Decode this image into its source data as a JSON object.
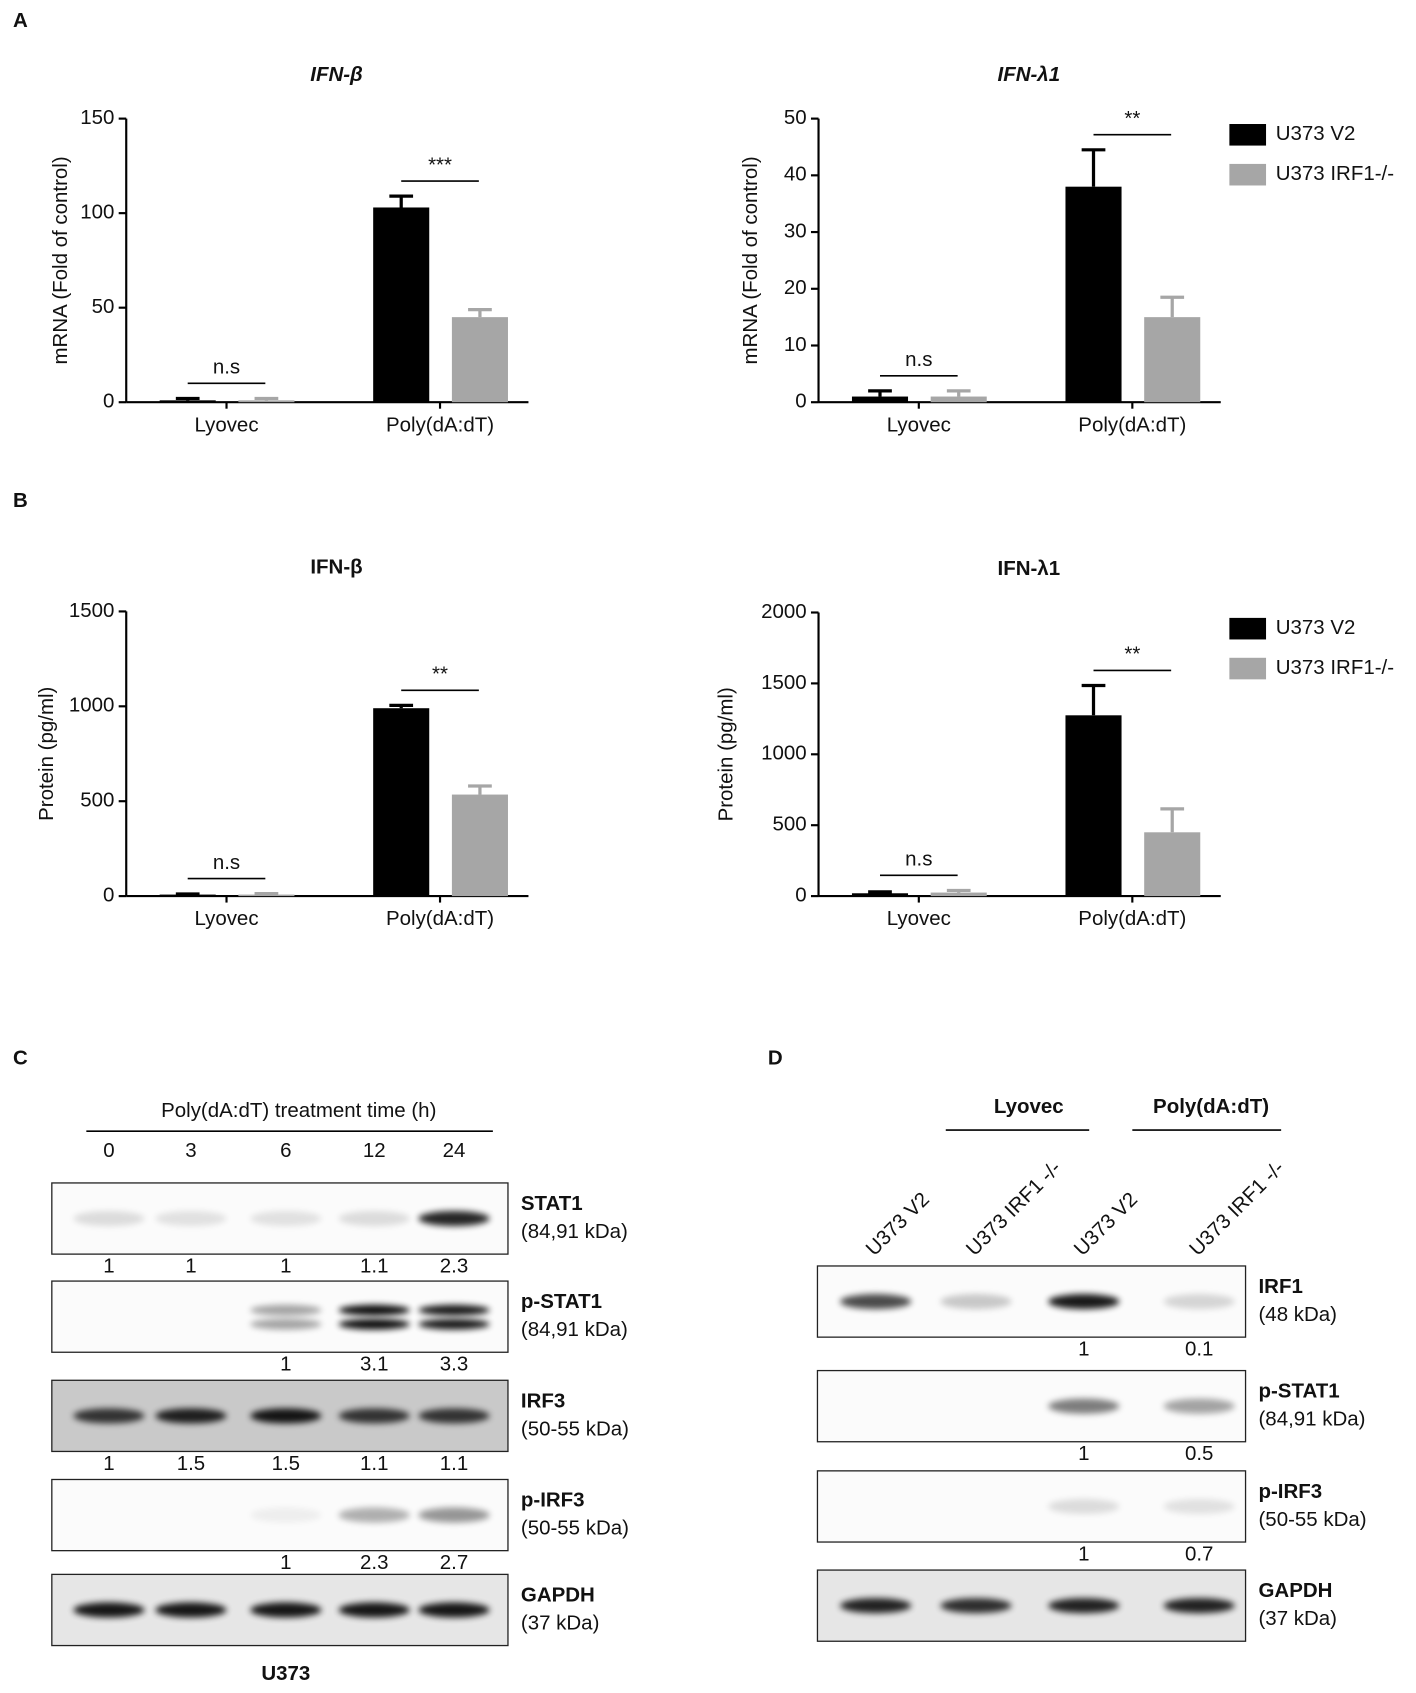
{
  "panel_labels": [
    "A",
    "B",
    "C",
    "D"
  ],
  "chart_data": [
    {
      "type": "bar",
      "title": "IFN-β",
      "italic_title": true,
      "y_label": "mRNA (Fold of control)",
      "categories": [
        "Lyovec",
        "Poly(dA:dT)"
      ],
      "series": [
        {
          "name": "U373 V2",
          "color": "#000000",
          "values": [
            1,
            103
          ],
          "errors": [
            1,
            6
          ]
        },
        {
          "name": "U373 IRF1-/-",
          "color": "#a6a6a6",
          "values": [
            1,
            45
          ],
          "errors": [
            1,
            4
          ]
        }
      ],
      "annotations": [
        "n.s",
        "***"
      ],
      "ylim": [
        0,
        150
      ],
      "yticks": [
        0,
        50,
        100,
        150
      ],
      "legend": false
    },
    {
      "type": "bar",
      "title": "IFN-λ1",
      "italic_title": true,
      "y_label": "mRNA (Fold of control)",
      "categories": [
        "Lyovec",
        "Poly(dA:dT)"
      ],
      "series": [
        {
          "name": "U373 V2",
          "color": "#000000",
          "values": [
            1,
            38
          ],
          "errors": [
            1,
            6.5
          ]
        },
        {
          "name": "U373 IRF1-/-",
          "color": "#a6a6a6",
          "values": [
            1,
            15
          ],
          "errors": [
            1,
            3.5
          ]
        }
      ],
      "annotations": [
        "n.s",
        "**"
      ],
      "ylim": [
        0,
        50
      ],
      "yticks": [
        0,
        10,
        20,
        30,
        40,
        50
      ],
      "legend": true
    },
    {
      "type": "bar",
      "title": "IFN-β",
      "italic_title": false,
      "y_label": "Protein (pg/ml)",
      "categories": [
        "Lyovec",
        "Poly(dA:dT)"
      ],
      "series": [
        {
          "name": "U373 V2",
          "color": "#000000",
          "values": [
            8,
            990
          ],
          "errors": [
            3,
            15
          ]
        },
        {
          "name": "U373 IRF1-/-",
          "color": "#a6a6a6",
          "values": [
            8,
            535
          ],
          "errors": [
            5,
            45
          ]
        }
      ],
      "annotations": [
        "n.s",
        "**"
      ],
      "ylim": [
        0,
        1500
      ],
      "yticks": [
        0,
        500,
        1000,
        1500
      ],
      "legend": false
    },
    {
      "type": "bar",
      "title": "IFN-λ1",
      "italic_title": false,
      "y_label": "Protein (pg/ml)",
      "categories": [
        "Lyovec",
        "Poly(dA:dT)"
      ],
      "series": [
        {
          "name": "U373 V2",
          "color": "#000000",
          "values": [
            20,
            1275
          ],
          "errors": [
            10,
            210
          ]
        },
        {
          "name": "U373 IRF1-/-",
          "color": "#a6a6a6",
          "values": [
            25,
            450
          ],
          "errors": [
            15,
            165
          ]
        }
      ],
      "annotations": [
        "n.s",
        "**"
      ],
      "ylim": [
        0,
        2000
      ],
      "yticks": [
        0,
        500,
        1000,
        1500,
        2000
      ],
      "legend": true
    }
  ],
  "blot_c": {
    "header": "Poly(dA:dT) treatment time (h)",
    "lanes": [
      "0",
      "3",
      "6",
      "12",
      "24"
    ],
    "rows": [
      {
        "name": "STAT1",
        "size": "(84,91 kDa)",
        "quant": [
          1,
          1,
          1,
          1.1,
          2.3
        ]
      },
      {
        "name": "p-STAT1",
        "size": "(84,91 kDa)",
        "quant": [
          null,
          null,
          1,
          3.1,
          3.3
        ]
      },
      {
        "name": "IRF3",
        "size": "(50-55 kDa)",
        "quant": [
          1,
          1.5,
          1.5,
          1.1,
          1.1
        ]
      },
      {
        "name": "p-IRF3",
        "size": "(50-55 kDa)",
        "quant": [
          null,
          null,
          1,
          2.3,
          2.7
        ]
      },
      {
        "name": "GAPDH",
        "size": "(37 kDa)"
      }
    ],
    "cell_line": "U373"
  },
  "blot_d": {
    "groups": [
      "Lyovec",
      "Poly(dA:dT)"
    ],
    "lanes": [
      "U373 V2",
      "U373 IRF1 -/-",
      "U373 V2",
      "U373 IRF1 -/-"
    ],
    "rows": [
      {
        "name": "IRF1",
        "size": "(48 kDa)",
        "quant": [
          null,
          null,
          1,
          0.1
        ]
      },
      {
        "name": "p-STAT1",
        "size": "(84,91 kDa)",
        "quant": [
          null,
          null,
          1,
          0.5
        ]
      },
      {
        "name": "p-IRF3",
        "size": "(50-55 kDa)",
        "quant": [
          null,
          null,
          1,
          0.7
        ]
      },
      {
        "name": "GAPDH",
        "size": "(37 kDa)"
      }
    ]
  }
}
